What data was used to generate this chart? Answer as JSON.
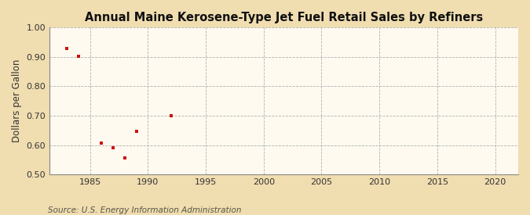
{
  "title": "Annual Maine Kerosene-Type Jet Fuel Retail Sales by Refiners",
  "ylabel": "Dollars per Gallon",
  "source": "Source: U.S. Energy Information Administration",
  "background_color": "#f0ddb0",
  "plot_background_color": "#fefaf0",
  "x_data": [
    1983,
    1984,
    1986,
    1987,
    1988,
    1989,
    1992
  ],
  "y_data": [
    0.93,
    0.902,
    0.608,
    0.592,
    0.557,
    0.648,
    0.7
  ],
  "marker_color": "#cc1111",
  "marker": "s",
  "marker_size": 3.5,
  "xlim": [
    1981.5,
    2022
  ],
  "ylim": [
    0.5,
    1.0
  ],
  "xticks": [
    1985,
    1990,
    1995,
    2000,
    2005,
    2010,
    2015,
    2020
  ],
  "yticks": [
    0.5,
    0.6,
    0.7,
    0.8,
    0.9,
    1.0
  ],
  "grid_color": "#b0b0b0",
  "grid_style": "--",
  "title_fontsize": 10.5,
  "axis_label_fontsize": 8.5,
  "tick_fontsize": 8,
  "source_fontsize": 7.5
}
